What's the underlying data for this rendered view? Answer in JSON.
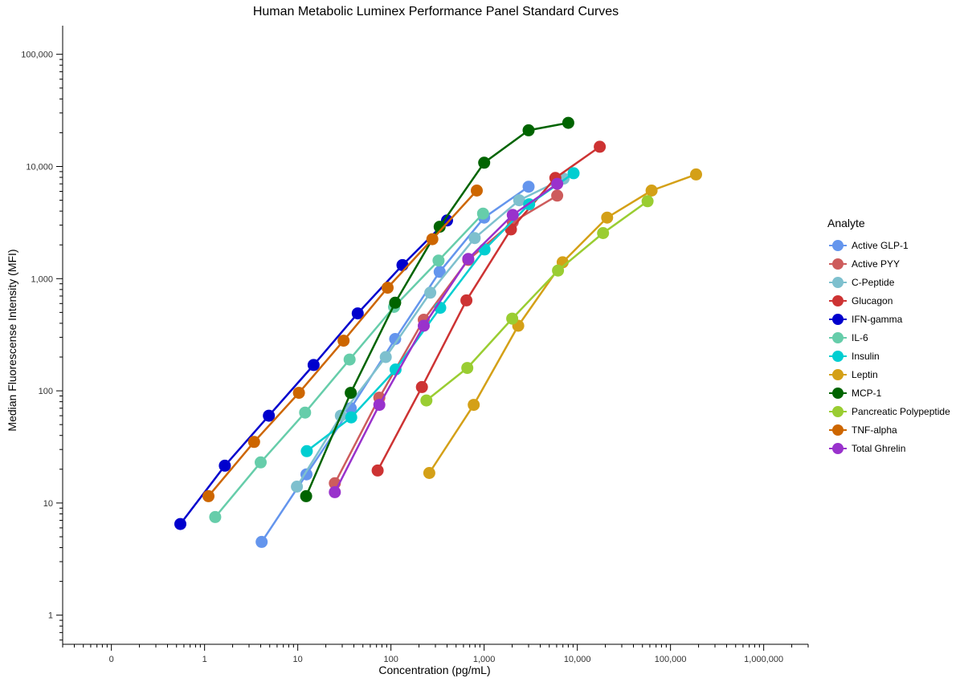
{
  "chart_data": {
    "type": "line",
    "title": "Human Metabolic Luminex Performance Panel Standard Curves",
    "xlabel": "Concentration (pg/mL)",
    "ylabel": "Median Fluorescense Intensity (MFI)",
    "xscale": "log",
    "yscale": "log",
    "xlim": [
      0.03,
      3000000
    ],
    "ylim": [
      0.55,
      180000
    ],
    "x_ticks": [
      {
        "value": 0.1,
        "label": "0"
      },
      {
        "value": 1,
        "label": "1"
      },
      {
        "value": 10,
        "label": "10"
      },
      {
        "value": 100,
        "label": "100"
      },
      {
        "value": 1000,
        "label": "1,000"
      },
      {
        "value": 10000,
        "label": "10,000"
      },
      {
        "value": 100000,
        "label": "100,000"
      },
      {
        "value": 1000000,
        "label": "1,000,000"
      }
    ],
    "y_ticks": [
      {
        "value": 1,
        "label": "1"
      },
      {
        "value": 10,
        "label": "10"
      },
      {
        "value": 100,
        "label": "100"
      },
      {
        "value": 1000,
        "label": "1,000"
      },
      {
        "value": 10000,
        "label": "10,000"
      },
      {
        "value": 100000,
        "label": "100,000"
      }
    ],
    "grid": false,
    "legend_title": "Analyte",
    "legend_position": "right",
    "series": [
      {
        "name": "Active GLP-1",
        "color": "#6495ED",
        "x": [
          4.1,
          12.4,
          37,
          111,
          333,
          1000,
          3000
        ],
        "y": [
          4.5,
          18,
          70,
          290,
          1150,
          3500,
          6600
        ]
      },
      {
        "name": "Active PYY",
        "color": "#CD5C5C",
        "x": [
          25,
          75,
          225,
          676,
          2030,
          6080
        ],
        "y": [
          15,
          87,
          430,
          1470,
          3200,
          5500
        ]
      },
      {
        "name": "C-Peptide",
        "color": "#7EC0CE",
        "x": [
          9.8,
          29,
          88,
          264,
          792,
          2380,
          7130
        ],
        "y": [
          14,
          60,
          200,
          750,
          2300,
          5000,
          7800
        ]
      },
      {
        "name": "Glucagon",
        "color": "#CD3333",
        "x": [
          72,
          215,
          645,
          1940,
          5810,
          17400
        ],
        "y": [
          19.5,
          108,
          640,
          2750,
          7900,
          15000
        ]
      },
      {
        "name": "IFN-gamma",
        "color": "#0000CD",
        "x": [
          0.55,
          1.65,
          4.9,
          14.8,
          44,
          133,
          400
        ],
        "y": [
          6.5,
          21.5,
          60,
          170,
          490,
          1320,
          3300
        ]
      },
      {
        "name": "IL-6",
        "color": "#66CDAA",
        "x": [
          1.3,
          4,
          12,
          36,
          108,
          324,
          973
        ],
        "y": [
          7.5,
          23,
          64,
          190,
          560,
          1450,
          3800
        ]
      },
      {
        "name": "Insulin",
        "color": "#00CED1",
        "x": [
          12.5,
          37.5,
          112,
          338,
          1010,
          3040,
          9120
        ],
        "y": [
          29,
          58,
          155,
          550,
          1820,
          4600,
          8700
        ]
      },
      {
        "name": "Leptin",
        "color": "#D4A017",
        "x": [
          258,
          773,
          2320,
          6960,
          20900,
          62600,
          188000
        ],
        "y": [
          18.5,
          75,
          380,
          1400,
          3500,
          6100,
          8500
        ]
      },
      {
        "name": "MCP-1",
        "color": "#006400",
        "x": [
          12.3,
          37,
          111,
          333,
          1000,
          3000,
          8000
        ],
        "y": [
          11.5,
          96,
          610,
          2900,
          10800,
          21000,
          24500
        ]
      },
      {
        "name": "Pancreatic Polypeptide",
        "color": "#9ACD32",
        "x": [
          240,
          660,
          2000,
          6200,
          18900,
          56700
        ],
        "y": [
          82,
          160,
          440,
          1180,
          2550,
          4900
        ]
      },
      {
        "name": "TNF-alpha",
        "color": "#CD6600",
        "x": [
          1.1,
          3.4,
          10.3,
          31,
          92,
          278,
          834
        ],
        "y": [
          11.5,
          35,
          96,
          280,
          830,
          2250,
          6100
        ]
      },
      {
        "name": "Total Ghrelin",
        "color": "#9932CC",
        "x": [
          25,
          75,
          225,
          676,
          2030,
          6080
        ],
        "y": [
          12.5,
          75,
          380,
          1500,
          3700,
          7000
        ]
      }
    ]
  }
}
